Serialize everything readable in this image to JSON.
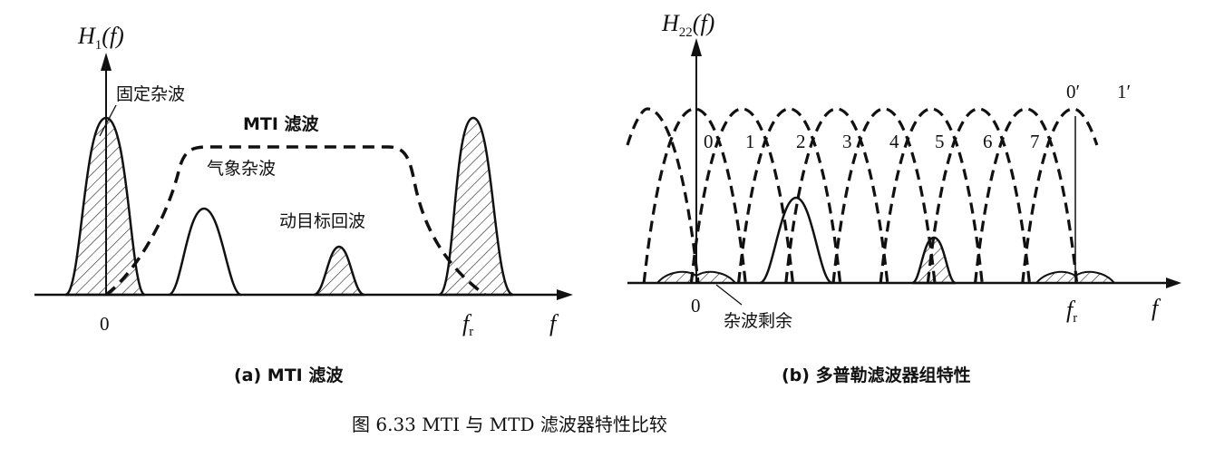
{
  "left_panel": {
    "y_axis_label": "H",
    "y_axis_sub": "1",
    "y_axis_arg": "(f)",
    "x_axis_label": "f",
    "origin": "0",
    "fr": "f",
    "fr_sub": "r",
    "labels": {
      "fixed_clutter": "固定杂波",
      "mti_filter": "MTI 滤波",
      "weather_clutter": "气象杂波",
      "moving_target": "动目标回波"
    },
    "caption": "(a) MTI 滤波"
  },
  "right_panel": {
    "y_axis_label": "H",
    "y_axis_sub": "22",
    "y_axis_arg": "(f)",
    "x_axis_label": "f",
    "origin": "0",
    "fr": "f",
    "fr_sub": "r",
    "filter_numbers": [
      "0",
      "1",
      "2",
      "3",
      "4",
      "5",
      "6",
      "7"
    ],
    "prime_labels": [
      "0′",
      "1′"
    ],
    "clutter_residue": "杂波剩余",
    "caption": "(b) 多普勒滤波器组特性"
  },
  "figure_caption": "图 6.33   MTI 与 MTD 滤波器特性比较"
}
